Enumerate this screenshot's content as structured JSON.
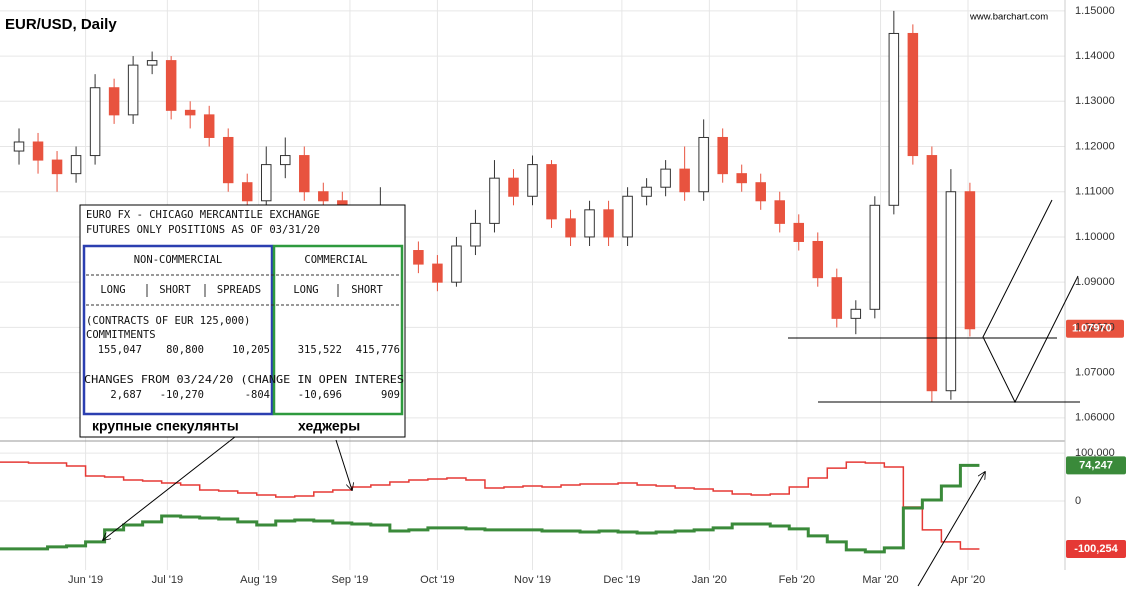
{
  "chart_data": [
    {
      "type": "candlestick",
      "title": "EUR/USD, Daily",
      "watermark": "www.barchart.com",
      "open": [
        1.119,
        1.121,
        1.117,
        1.114,
        1.118,
        1.133,
        1.127,
        1.138,
        1.139,
        1.128,
        1.127,
        1.122,
        1.112,
        1.108,
        1.116,
        1.118,
        1.11,
        1.108,
        1.103,
        1.101,
        1.105,
        1.097,
        1.094,
        1.09,
        1.098,
        1.103,
        1.113,
        1.109,
        1.116,
        1.104,
        1.1,
        1.106,
        1.1,
        1.109,
        1.111,
        1.115,
        1.11,
        1.122,
        1.114,
        1.112,
        1.108,
        1.103,
        1.099,
        1.091,
        1.082,
        1.084,
        1.107,
        1.145,
        1.118,
        1.066,
        1.11
      ],
      "high": [
        1.124,
        1.123,
        1.119,
        1.12,
        1.136,
        1.135,
        1.14,
        1.141,
        1.14,
        1.13,
        1.129,
        1.124,
        1.114,
        1.12,
        1.122,
        1.12,
        1.112,
        1.11,
        1.106,
        1.111,
        1.107,
        1.099,
        1.096,
        1.1,
        1.106,
        1.117,
        1.115,
        1.118,
        1.117,
        1.106,
        1.108,
        1.108,
        1.111,
        1.113,
        1.117,
        1.12,
        1.126,
        1.124,
        1.116,
        1.114,
        1.11,
        1.105,
        1.101,
        1.093,
        1.086,
        1.109,
        1.15,
        1.147,
        1.12,
        1.115,
        1.112
      ],
      "low": [
        1.116,
        1.114,
        1.11,
        1.112,
        1.116,
        1.125,
        1.125,
        1.136,
        1.126,
        1.124,
        1.12,
        1.11,
        1.105,
        1.106,
        1.113,
        1.108,
        1.106,
        1.101,
        1.099,
        1.099,
        1.095,
        1.092,
        1.088,
        1.089,
        1.096,
        1.101,
        1.107,
        1.107,
        1.102,
        1.098,
        1.098,
        1.098,
        1.098,
        1.107,
        1.109,
        1.108,
        1.108,
        1.112,
        1.11,
        1.106,
        1.101,
        1.097,
        1.089,
        1.08,
        1.0785,
        1.082,
        1.105,
        1.116,
        1.0635,
        1.064,
        1.078
      ],
      "close": [
        1.121,
        1.117,
        1.114,
        1.118,
        1.133,
        1.127,
        1.138,
        1.139,
        1.128,
        1.127,
        1.122,
        1.112,
        1.108,
        1.116,
        1.118,
        1.11,
        1.108,
        1.103,
        1.101,
        1.105,
        1.097,
        1.094,
        1.09,
        1.098,
        1.103,
        1.113,
        1.109,
        1.116,
        1.104,
        1.1,
        1.106,
        1.1,
        1.109,
        1.111,
        1.115,
        1.11,
        1.122,
        1.114,
        1.112,
        1.108,
        1.103,
        1.099,
        1.091,
        1.082,
        1.084,
        1.107,
        1.145,
        1.118,
        1.066,
        1.11,
        1.0797
      ],
      "last_label": "1.07970",
      "up_color": "#ffffff",
      "down_color": "#e8533f",
      "xlim": [
        -1,
        55
      ],
      "xticks": [
        {
          "value": 3.5,
          "label": "Jun '19"
        },
        {
          "value": 7.8,
          "label": "Jul '19"
        },
        {
          "value": 12.6,
          "label": "Aug '19"
        },
        {
          "value": 17.4,
          "label": "Sep '19"
        },
        {
          "value": 22,
          "label": "Oct '19"
        },
        {
          "value": 27,
          "label": "Nov '19"
        },
        {
          "value": 31.7,
          "label": "Dec '19"
        },
        {
          "value": 36.3,
          "label": "Jan '20"
        },
        {
          "value": 40.9,
          "label": "Feb '20"
        },
        {
          "value": 45.3,
          "label": "Mar '20"
        },
        {
          "value": 49.9,
          "label": "Apr '20"
        }
      ],
      "ylim": [
        1.0551,
        1.1524
      ],
      "yticks": [
        {
          "value": 1.06,
          "label": "1.06000"
        },
        {
          "value": 1.07,
          "label": "1.07000"
        },
        {
          "value": 1.08,
          "label": "1.08000"
        },
        {
          "value": 1.09,
          "label": "1.09000"
        },
        {
          "value": 1.1,
          "label": "1.10000"
        },
        {
          "value": 1.11,
          "label": "1.11000"
        },
        {
          "value": 1.12,
          "label": "1.12000"
        },
        {
          "value": 1.13,
          "label": "1.13000"
        },
        {
          "value": 1.14,
          "label": "1.14000"
        },
        {
          "value": 1.15,
          "label": "1.15000"
        }
      ],
      "grid": true
    },
    {
      "type": "step",
      "ylim": [
        -144000,
        121000
      ],
      "yticks": [
        0,
        {
          "value": 100000,
          "label": "100,000"
        }
      ],
      "series": [
        {
          "color": "#e53935",
          "width": 1.5,
          "end_label": "-100,254",
          "values": [
            81200,
            79200,
            79200,
            72900,
            52100,
            50000,
            43700,
            41700,
            37500,
            33300,
            22900,
            20800,
            16700,
            12500,
            8300,
            10400,
            18700,
            22900,
            29200,
            33300,
            39600,
            43700,
            45800,
            47900,
            43700,
            27100,
            29200,
            31200,
            29200,
            33300,
            35400,
            35400,
            37500,
            33300,
            31200,
            27100,
            25000,
            20800,
            14600,
            12500,
            14600,
            29200,
            47900,
            68700,
            81200,
            79200,
            70800,
            -12500,
            -60400,
            -85400,
            -100254
          ]
        },
        {
          "color": "#3a8a3a",
          "width": 3,
          "end_label": "74,247",
          "values": [
            -100000,
            -100000,
            -95800,
            -93700,
            -85400,
            -60400,
            -50000,
            -43700,
            -31200,
            -33300,
            -35400,
            -37500,
            -43700,
            -50000,
            -41700,
            -39600,
            -41700,
            -45800,
            -47900,
            -50000,
            -62500,
            -60400,
            -56200,
            -56200,
            -58300,
            -60400,
            -60400,
            -60400,
            -62500,
            -62500,
            -64600,
            -62500,
            -64600,
            -66700,
            -64600,
            -62500,
            -60400,
            -56200,
            -47900,
            -47900,
            -52100,
            -58300,
            -72900,
            -85400,
            -102100,
            -106200,
            -97900,
            -14600,
            2100,
            31200,
            74247
          ]
        }
      ]
    }
  ],
  "overlay": {
    "header": [
      "EURO FX - CHICAGO MERCANTILE EXCHANGE",
      "FUTURES ONLY POSITIONS AS OF 03/31/20"
    ],
    "groups": [
      "NON-COMMERCIAL",
      "COMMERCIAL"
    ],
    "columns": [
      "LONG",
      "SHORT",
      "SPREADS",
      "LONG",
      "SHORT"
    ],
    "contracts": "(CONTRACTS OF EUR 125,000)",
    "commitments_label": "COMMITMENTS",
    "commitments": [
      "155,047",
      "80,800",
      "10,205",
      "315,522",
      "415,776"
    ],
    "changes_label": "CHANGES FROM 03/24/20 (CHANGE IN OPEN INTERES",
    "changes": [
      "2,687",
      "-10,270",
      "-804",
      "-10,696",
      "909"
    ],
    "captions": [
      "крупные спекулянты",
      "хеджеры"
    ]
  }
}
